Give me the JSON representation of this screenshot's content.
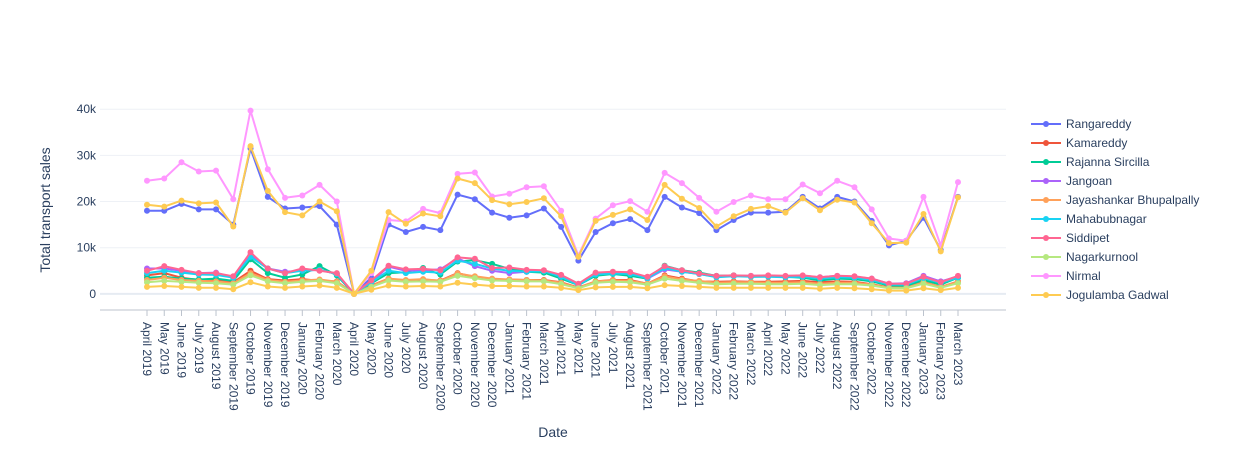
{
  "chart_data": {
    "type": "line",
    "xlabel": "Date",
    "ylabel": "Total transport sales",
    "ylim": [
      -3500,
      42000
    ],
    "yticks": [
      0,
      10000,
      20000,
      30000,
      40000
    ],
    "ytick_labels": [
      "0",
      "10k",
      "20k",
      "30k",
      "40k"
    ],
    "grid": true,
    "legend_position": "right",
    "categories": [
      "April 2019",
      "May 2019",
      "June 2019",
      "July 2019",
      "August 2019",
      "September 2019",
      "October 2019",
      "November 2019",
      "December 2019",
      "January 2020",
      "February 2020",
      "March 2020",
      "April 2020",
      "May 2020",
      "June 2020",
      "July 2020",
      "August 2020",
      "September 2020",
      "October 2020",
      "November 2020",
      "December 2020",
      "January 2021",
      "February 2021",
      "March 2021",
      "April 2021",
      "May 2021",
      "June 2021",
      "July 2021",
      "August 2021",
      "September 2021",
      "October 2021",
      "November 2021",
      "December 2021",
      "January 2022",
      "February 2022",
      "March 2022",
      "April 2022",
      "May 2022",
      "June 2022",
      "July 2022",
      "August 2022",
      "September 2022",
      "October 2022",
      "November 2022",
      "December 2022",
      "January 2023",
      "February 2023",
      "March 2023"
    ],
    "series": [
      {
        "name": "Rangareddy",
        "color": "#636efa",
        "values": [
          18000,
          18000,
          19500,
          18300,
          18300,
          15000,
          31500,
          21000,
          18500,
          18700,
          19000,
          15000,
          0,
          3500,
          15000,
          13400,
          14500,
          13800,
          21500,
          20500,
          17600,
          16500,
          17000,
          18500,
          14500,
          7200,
          13400,
          15300,
          16200,
          13800,
          21000,
          18700,
          17500,
          13800,
          16000,
          17600,
          17600,
          17800,
          21000,
          18500,
          21000,
          20000,
          15800,
          10500,
          11500,
          16500,
          9500,
          21000
        ]
      },
      {
        "name": "Kamareddy",
        "color": "#ef553b",
        "values": [
          4000,
          4500,
          3500,
          3000,
          2900,
          2500,
          5000,
          3200,
          2900,
          3200,
          2800,
          2700,
          0,
          1800,
          3300,
          2700,
          3000,
          2900,
          4500,
          3600,
          3100,
          3100,
          3000,
          3000,
          2500,
          1400,
          2700,
          3000,
          3000,
          2200,
          4000,
          3300,
          2700,
          2600,
          2700,
          2600,
          2600,
          2700,
          2800,
          2500,
          2700,
          2600,
          2100,
          1400,
          1400,
          2600,
          1500,
          2700
        ]
      },
      {
        "name": "Rajanna Sircilla",
        "color": "#00cc96",
        "values": [
          3500,
          3700,
          3300,
          3100,
          3300,
          2800,
          7500,
          4500,
          3500,
          4200,
          6000,
          4000,
          0,
          2300,
          4500,
          4700,
          5600,
          4200,
          7000,
          7300,
          6500,
          5400,
          4800,
          4600,
          3300,
          1900,
          3900,
          4300,
          3900,
          3300,
          6100,
          5100,
          4600,
          3900,
          4000,
          3700,
          3800,
          3700,
          3500,
          2900,
          3300,
          3200,
          2700,
          1800,
          1700,
          3000,
          2000,
          3500
        ]
      },
      {
        "name": "Jangoan",
        "color": "#ab63fa",
        "values": [
          5500,
          5500,
          5000,
          4500,
          4600,
          3500,
          8500,
          5500,
          4800,
          5000,
          5200,
          4300,
          0,
          2600,
          5900,
          5000,
          5100,
          5300,
          7700,
          6000,
          5000,
          4500,
          4800,
          5000,
          3700,
          2000,
          4400,
          4600,
          4700,
          3300,
          5300,
          4800,
          4300,
          3700,
          3900,
          3900,
          3900,
          3800,
          3900,
          3600,
          3900,
          3700,
          3300,
          2200,
          2300,
          3900,
          2700,
          3800
        ]
      },
      {
        "name": "Jayashankar Bhupalpally",
        "color": "#ffa15a",
        "values": [
          3000,
          3500,
          3000,
          2800,
          2700,
          2300,
          4500,
          3000,
          2600,
          2900,
          3100,
          2600,
          0,
          1700,
          3300,
          3000,
          3200,
          2800,
          4400,
          3800,
          3300,
          3100,
          3000,
          2900,
          2400,
          1300,
          2700,
          2900,
          2800,
          2200,
          3800,
          3100,
          2800,
          2400,
          2500,
          2500,
          2400,
          2400,
          2500,
          2200,
          2400,
          2400,
          2000,
          1300,
          1300,
          2500,
          1500,
          2600
        ]
      },
      {
        "name": "Mahabubnagar",
        "color": "#19d3f3",
        "values": [
          4500,
          5000,
          4600,
          4200,
          4100,
          3500,
          8000,
          5500,
          4500,
          5000,
          5200,
          4300,
          0,
          2500,
          5000,
          4500,
          4800,
          4600,
          7200,
          6500,
          5500,
          5000,
          4800,
          4900,
          3700,
          1900,
          4200,
          4400,
          4300,
          3400,
          5600,
          4800,
          4300,
          3600,
          3800,
          3700,
          3700,
          3600,
          3700,
          3300,
          3600,
          3500,
          3000,
          2000,
          2000,
          3400,
          2400,
          3500
        ]
      },
      {
        "name": "Siddipet",
        "color": "#ff6692",
        "values": [
          5000,
          6000,
          5200,
          4500,
          4500,
          3800,
          9000,
          5500,
          4500,
          5500,
          5000,
          4500,
          0,
          2900,
          6100,
          5300,
          5400,
          5100,
          7900,
          7600,
          5600,
          5700,
          5200,
          5100,
          4100,
          2200,
          4600,
          4800,
          4700,
          3700,
          6000,
          5100,
          4400,
          3900,
          4000,
          3900,
          4000,
          3900,
          4000,
          3600,
          3900,
          3800,
          3300,
          2200,
          2200,
          3700,
          2500,
          3900
        ]
      },
      {
        "name": "Nagarkurnool",
        "color": "#b6e880",
        "values": [
          2500,
          2800,
          2600,
          2400,
          2300,
          2000,
          4000,
          2700,
          2300,
          2600,
          2800,
          2300,
          0,
          1500,
          2900,
          2600,
          2700,
          2600,
          3900,
          3400,
          2900,
          2800,
          2700,
          2700,
          2100,
          1200,
          2400,
          2600,
          2500,
          2000,
          3300,
          2800,
          2400,
          2100,
          2200,
          2200,
          2100,
          2100,
          2200,
          1900,
          2100,
          2100,
          1800,
          1200,
          1200,
          2200,
          1300,
          2300
        ]
      },
      {
        "name": "Nirmal",
        "color": "#ff97ff",
        "values": [
          24500,
          25000,
          28500,
          26500,
          26700,
          20500,
          39700,
          27000,
          20800,
          21300,
          23600,
          20000,
          0,
          4500,
          16000,
          15700,
          18400,
          17500,
          26000,
          26300,
          21100,
          21700,
          23100,
          23300,
          18000,
          8300,
          16300,
          19200,
          20100,
          17800,
          26200,
          24000,
          20800,
          17800,
          19900,
          21300,
          20500,
          20500,
          23700,
          21800,
          24500,
          23100,
          18300,
          12000,
          11500,
          21000,
          10500,
          24200
        ]
      },
      {
        "name": "Jogulamba Gadwal",
        "color": "#fecb52",
        "values": [
          1500,
          1700,
          1500,
          1300,
          1300,
          1000,
          2500,
          1600,
          1300,
          1600,
          1800,
          1300,
          0,
          900,
          1800,
          1600,
          1700,
          1600,
          2400,
          2000,
          1700,
          1700,
          1600,
          1600,
          1300,
          800,
          1400,
          1500,
          1500,
          1200,
          1900,
          1700,
          1500,
          1300,
          1300,
          1300,
          1300,
          1300,
          1300,
          1100,
          1300,
          1200,
          1000,
          700,
          700,
          1200,
          800,
          1300
        ]
      },
      {
        "name": "",
        "color": "#fecb52",
        "values": [
          19300,
          18900,
          20200,
          19600,
          19800,
          14600,
          32000,
          22300,
          17700,
          17000,
          20000,
          17900,
          0,
          5000,
          17700,
          15200,
          17400,
          16800,
          25000,
          24000,
          20300,
          19400,
          19900,
          20700,
          16800,
          8000,
          15800,
          17100,
          18300,
          16000,
          23600,
          20600,
          18600,
          14600,
          16800,
          18400,
          19000,
          17600,
          20700,
          18100,
          20400,
          19800,
          15300,
          11000,
          11100,
          17300,
          9200,
          20900
        ]
      }
    ]
  }
}
